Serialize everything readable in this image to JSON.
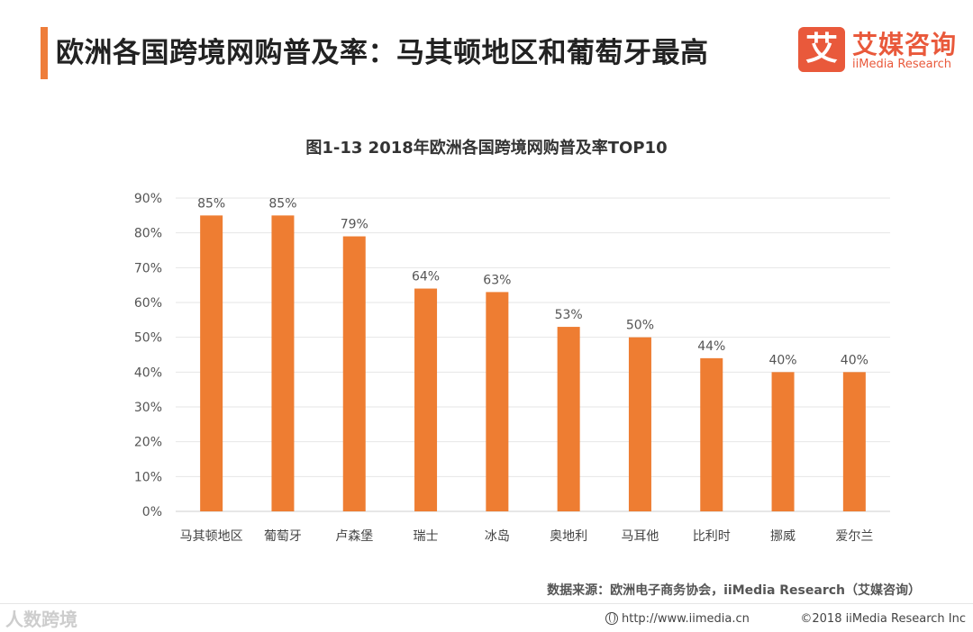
{
  "header": {
    "title": "欧洲各国跨境网购普及率：马其顿地区和葡萄牙最高"
  },
  "logo": {
    "mark": "艾",
    "name_cn": "艾媒咨询",
    "name_en": "iiMedia Research"
  },
  "chart_data": {
    "type": "bar",
    "title": "图1-13  2018年欧洲各国跨境网购普及率TOP10",
    "categories": [
      "马其顿地区",
      "葡萄牙",
      "卢森堡",
      "瑞士",
      "冰岛",
      "奥地利",
      "马耳他",
      "比利时",
      "挪威",
      "爱尔兰"
    ],
    "values": [
      85,
      85,
      79,
      64,
      63,
      53,
      50,
      44,
      40,
      40
    ],
    "value_labels": [
      "85%",
      "85%",
      "79%",
      "64%",
      "63%",
      "53%",
      "50%",
      "44%",
      "40%",
      "40%"
    ],
    "yticks": [
      0,
      10,
      20,
      30,
      40,
      50,
      60,
      70,
      80,
      90
    ],
    "ytick_labels": [
      "0%",
      "10%",
      "20%",
      "30%",
      "40%",
      "50%",
      "60%",
      "70%",
      "80%",
      "90%"
    ],
    "ylim": [
      0,
      90
    ],
    "xlabel": "",
    "ylabel": "",
    "grid": true,
    "bar_color": "#ee7d32"
  },
  "source": "数据来源：欧洲电子商务协会，iiMedia Research（艾媒咨询）",
  "footer": {
    "watermark": "人数跨境",
    "url": "http://www.iimedia.cn",
    "copyright": "©2018  iiMedia Research  Inc"
  },
  "colors": {
    "accent": "#ee7d3a",
    "brand": "#e9593b",
    "bar": "#ee7d32"
  }
}
